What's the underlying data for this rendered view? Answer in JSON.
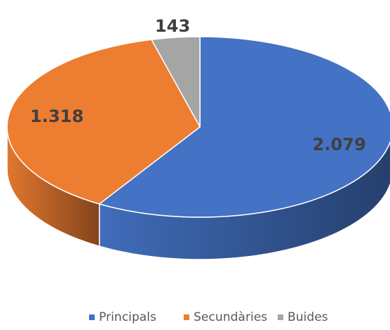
{
  "chart_data": {
    "type": "pie",
    "categories": [
      "Principals",
      "Secundàries",
      "Buides"
    ],
    "values": [
      2079,
      1318,
      143
    ],
    "value_labels": [
      "2.079",
      "1.318",
      "143"
    ],
    "colors": [
      "#4472c4",
      "#ed7d31",
      "#a5a5a5"
    ],
    "legend": "bottom"
  }
}
